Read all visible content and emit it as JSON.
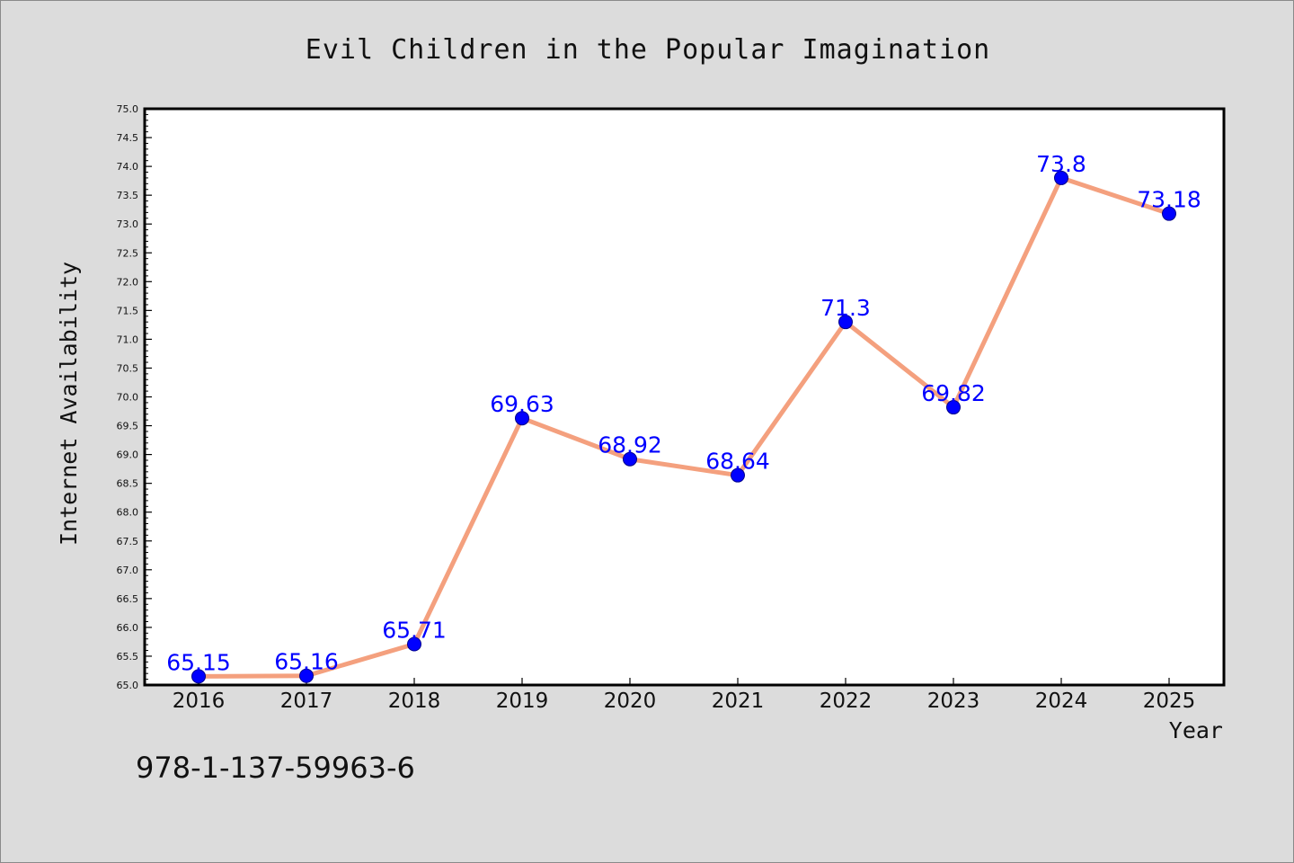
{
  "chart_data": {
    "type": "line",
    "title": "Evil Children in the Popular Imagination",
    "xlabel": "Year",
    "ylabel": "Internet Availability",
    "categories": [
      "2016",
      "2017",
      "2018",
      "2019",
      "2020",
      "2021",
      "2022",
      "2023",
      "2024",
      "2025"
    ],
    "series": [
      {
        "values": [
          65.15,
          65.16,
          65.71,
          69.63,
          68.92,
          68.64,
          71.3,
          69.82,
          73.8,
          73.18
        ],
        "labels": [
          "65.15",
          "65.16",
          "65.71",
          "69.63",
          "68.92",
          "68.64",
          "71.3",
          "69.82",
          "73.8",
          "73.18"
        ]
      }
    ],
    "ylim": [
      65.0,
      75.0
    ],
    "yticks": [
      "65.0",
      "65.5",
      "66.0",
      "66.5",
      "67.0",
      "67.5",
      "68.0",
      "68.5",
      "69.0",
      "69.5",
      "70.0",
      "70.5",
      "71.0",
      "71.5",
      "72.0",
      "72.5",
      "73.0",
      "73.5",
      "74.0",
      "74.5",
      "75.0"
    ],
    "grid": false,
    "legend": "none",
    "colors": {
      "line": "#f4a07e",
      "marker": "#0000ff",
      "data_label": "#0000ff",
      "background": "#dcdcdc",
      "plot_background": "#ffffff"
    },
    "annotation": "978-1-137-59963-6"
  }
}
